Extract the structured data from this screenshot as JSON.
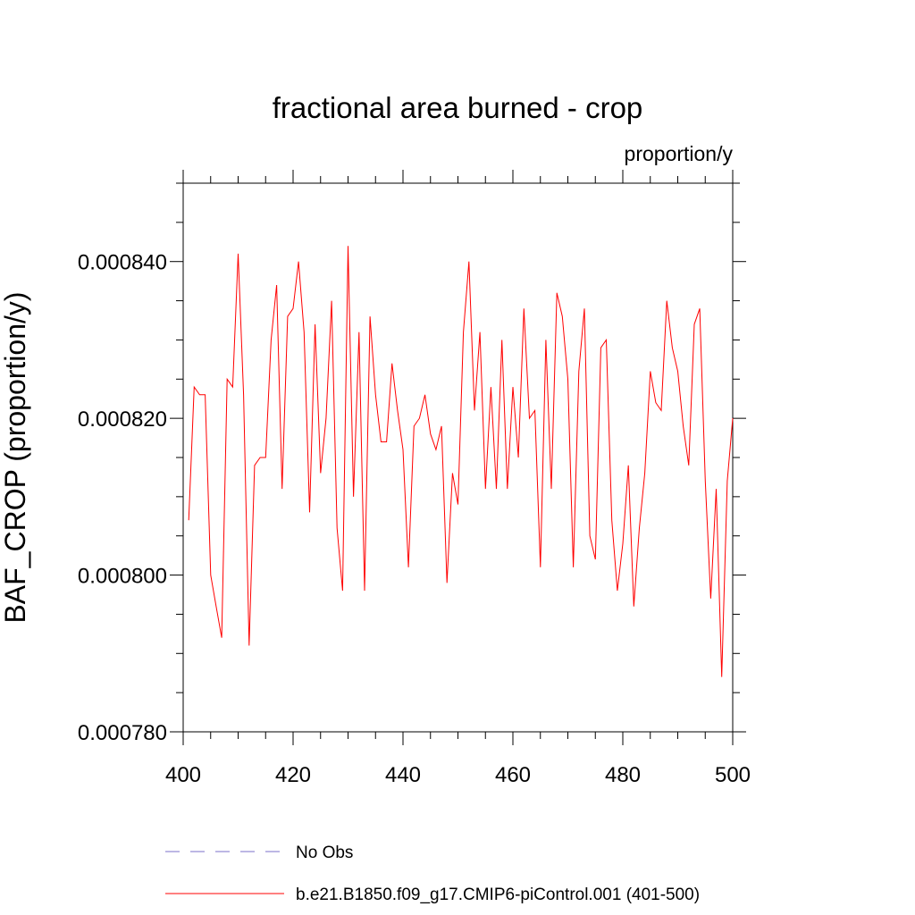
{
  "chart_data": {
    "type": "line",
    "title": "fractional area burned - crop",
    "units_label": "proportion/y",
    "xlabel": "",
    "ylabel": "BAF_CROP  (proportion/y)",
    "xlim": [
      400,
      500
    ],
    "ylim": [
      0.00078,
      0.00085
    ],
    "x_ticks": [
      400,
      420,
      440,
      460,
      480,
      500
    ],
    "x_tick_labels": [
      "400",
      "420",
      "440",
      "460",
      "480",
      "500"
    ],
    "y_ticks": [
      0.00078,
      0.0008,
      0.00082,
      0.00084
    ],
    "y_tick_labels": [
      "0.000780",
      "0.000800",
      "0.000820",
      "0.000840"
    ],
    "grid": false,
    "legend_position": "bottom",
    "series": [
      {
        "name": "No Obs",
        "color": "#7b6fc9",
        "style": "dashed",
        "x": [],
        "y": []
      },
      {
        "name": "b.e21.B1850.f09_g17.CMIP6-piControl.001 (401-500)",
        "color": "#ff0000",
        "style": "solid",
        "x": [
          401,
          402,
          403,
          404,
          405,
          406,
          407,
          408,
          409,
          410,
          411,
          412,
          413,
          414,
          415,
          416,
          417,
          418,
          419,
          420,
          421,
          422,
          423,
          424,
          425,
          426,
          427,
          428,
          429,
          430,
          431,
          432,
          433,
          434,
          435,
          436,
          437,
          438,
          439,
          440,
          441,
          442,
          443,
          444,
          445,
          446,
          447,
          448,
          449,
          450,
          451,
          452,
          453,
          454,
          455,
          456,
          457,
          458,
          459,
          460,
          461,
          462,
          463,
          464,
          465,
          466,
          467,
          468,
          469,
          470,
          471,
          472,
          473,
          474,
          475,
          476,
          477,
          478,
          479,
          480,
          481,
          482,
          483,
          484,
          485,
          486,
          487,
          488,
          489,
          490,
          491,
          492,
          493,
          494,
          495,
          496,
          497,
          498,
          499,
          500
        ],
        "y": [
          0.000807,
          0.000824,
          0.000823,
          0.000823,
          0.0008,
          0.000796,
          0.000792,
          0.000825,
          0.000824,
          0.000841,
          0.000823,
          0.000791,
          0.000814,
          0.000815,
          0.000815,
          0.00083,
          0.000837,
          0.000811,
          0.000833,
          0.000834,
          0.00084,
          0.000831,
          0.000808,
          0.000832,
          0.000813,
          0.00082,
          0.000835,
          0.000806,
          0.000798,
          0.000842,
          0.00081,
          0.000831,
          0.000798,
          0.000833,
          0.000823,
          0.000817,
          0.000817,
          0.000827,
          0.000821,
          0.000816,
          0.000801,
          0.000819,
          0.00082,
          0.000823,
          0.000818,
          0.000816,
          0.000819,
          0.000799,
          0.000813,
          0.000809,
          0.000831,
          0.00084,
          0.000821,
          0.000831,
          0.000811,
          0.000824,
          0.000811,
          0.00083,
          0.000811,
          0.000824,
          0.000815,
          0.000834,
          0.00082,
          0.000821,
          0.000801,
          0.00083,
          0.000811,
          0.000836,
          0.000833,
          0.000825,
          0.000801,
          0.000826,
          0.000834,
          0.000805,
          0.000802,
          0.000829,
          0.00083,
          0.000807,
          0.000798,
          0.000804,
          0.000814,
          0.000796,
          0.000806,
          0.000813,
          0.000826,
          0.000822,
          0.000821,
          0.000835,
          0.000829,
          0.000826,
          0.000819,
          0.000814,
          0.000832,
          0.000834,
          0.000812,
          0.000797,
          0.000811,
          0.000787,
          0.000812,
          0.00082
        ]
      }
    ]
  }
}
